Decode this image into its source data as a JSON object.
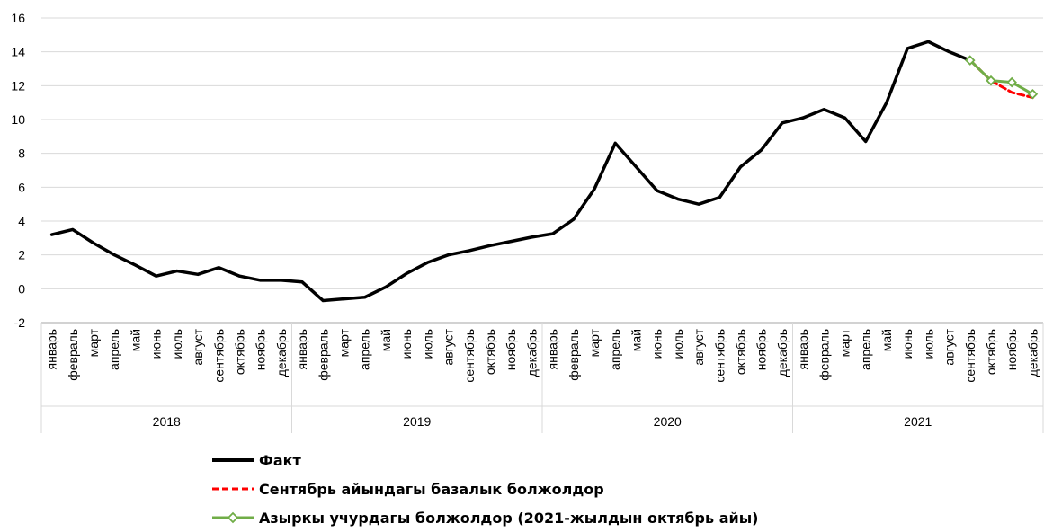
{
  "chart_data": {
    "type": "line",
    "ylim": [
      -2,
      16
    ],
    "y_ticks": [
      "-2",
      "0",
      "2",
      "4",
      "6",
      "8",
      "10",
      "12",
      "14",
      "16"
    ],
    "grid": true,
    "legend_position": "bottom",
    "months": [
      "январь",
      "февраль",
      "март",
      "апрель",
      "май",
      "июнь",
      "июль",
      "август",
      "сентябрь",
      "октябрь",
      "ноябрь",
      "декабрь"
    ],
    "years": [
      "2018",
      "2019",
      "2020",
      "2021"
    ],
    "series": [
      {
        "name": "Факт",
        "color": "#000000",
        "start_index": 0,
        "values": [
          3.2,
          3.5,
          2.7,
          2.0,
          1.4,
          0.75,
          1.05,
          0.85,
          1.25,
          0.75,
          0.5,
          0.5,
          0.4,
          -0.7,
          -0.6,
          -0.5,
          0.1,
          0.9,
          1.55,
          2.0,
          2.25,
          2.55,
          2.8,
          3.05,
          3.25,
          4.1,
          5.9,
          8.6,
          7.2,
          5.8,
          5.3,
          5.0,
          5.4,
          7.2,
          8.2,
          9.8,
          10.1,
          10.6,
          10.1,
          8.7,
          11.0,
          14.2,
          14.6,
          14.0,
          13.5
        ]
      },
      {
        "name": "Сентябрь айындагы базалык болжолдор",
        "color": "#ff0000",
        "dashed": true,
        "start_index": 44,
        "values": [
          13.5,
          12.3,
          11.6,
          11.3
        ]
      },
      {
        "name": "Азыркы учурдагы болжолдор (2021-жылдын октябрь айы)",
        "color": "#70ad47",
        "markers": "diamond",
        "start_index": 44,
        "values": [
          13.5,
          12.3,
          12.2,
          11.5
        ]
      }
    ]
  }
}
